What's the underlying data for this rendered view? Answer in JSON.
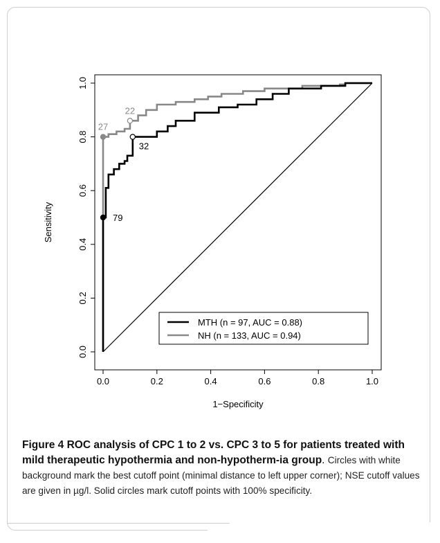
{
  "chart_data": {
    "type": "line",
    "xlabel": "1−Specificity",
    "ylabel": "Sensitivity",
    "xlim": [
      0,
      1
    ],
    "ylim": [
      0,
      1
    ],
    "xticks": [
      "0.0",
      "0.2",
      "0.4",
      "0.6",
      "0.8",
      "1.0"
    ],
    "yticks": [
      "0.0",
      "0.2",
      "0.4",
      "0.6",
      "0.8",
      "1.0"
    ],
    "legend_position": "bottom-right",
    "series": [
      {
        "name": "MTH (n = 97, AUC = 0.88)",
        "color": "#000000",
        "x": [
          0,
          0,
          0.01,
          0.01,
          0.02,
          0.02,
          0.04,
          0.04,
          0.06,
          0.06,
          0.08,
          0.08,
          0.09,
          0.09,
          0.11,
          0.11,
          0.2,
          0.2,
          0.24,
          0.24,
          0.27,
          0.27,
          0.34,
          0.34,
          0.43,
          0.43,
          0.5,
          0.5,
          0.57,
          0.57,
          0.63,
          0.63,
          0.69,
          0.69,
          0.81,
          0.81,
          0.9,
          0.9,
          1.0
        ],
        "y": [
          0,
          0.5,
          0.5,
          0.61,
          0.61,
          0.66,
          0.66,
          0.68,
          0.68,
          0.7,
          0.7,
          0.71,
          0.71,
          0.73,
          0.73,
          0.8,
          0.8,
          0.82,
          0.82,
          0.84,
          0.84,
          0.86,
          0.86,
          0.89,
          0.89,
          0.91,
          0.91,
          0.92,
          0.92,
          0.94,
          0.94,
          0.96,
          0.96,
          0.98,
          0.98,
          0.99,
          0.99,
          1.0,
          1.0
        ]
      },
      {
        "name": "NH (n = 133, AUC = 0.94)",
        "color": "#888888",
        "x": [
          0,
          0,
          0.02,
          0.02,
          0.05,
          0.05,
          0.08,
          0.08,
          0.1,
          0.1,
          0.13,
          0.13,
          0.16,
          0.16,
          0.2,
          0.2,
          0.27,
          0.27,
          0.34,
          0.34,
          0.39,
          0.39,
          0.44,
          0.44,
          0.52,
          0.52,
          0.6,
          0.6,
          0.74,
          0.74,
          0.88,
          0.88,
          0.9,
          0.9,
          1.0
        ],
        "y": [
          0,
          0.8,
          0.8,
          0.81,
          0.81,
          0.82,
          0.82,
          0.83,
          0.83,
          0.86,
          0.86,
          0.88,
          0.88,
          0.9,
          0.9,
          0.92,
          0.92,
          0.93,
          0.93,
          0.94,
          0.94,
          0.95,
          0.95,
          0.96,
          0.96,
          0.97,
          0.97,
          0.98,
          0.98,
          0.99,
          0.99,
          0.995,
          0.995,
          1.0,
          1.0
        ]
      }
    ],
    "points": [
      {
        "x": 0,
        "y": 0.5,
        "label": "79",
        "fill": "#000000",
        "stroke": "#000000",
        "label_color": "#000000",
        "label_side": "right"
      },
      {
        "x": 0.11,
        "y": 0.8,
        "label": "32",
        "fill": "#ffffff",
        "stroke": "#000000",
        "label_color": "#000000",
        "label_side": "below-right"
      },
      {
        "x": 0,
        "y": 0.8,
        "label": "27",
        "fill": "#888888",
        "stroke": "#888888",
        "label_color": "#888888",
        "label_side": "above"
      },
      {
        "x": 0.1,
        "y": 0.86,
        "label": "22",
        "fill": "#ffffff",
        "stroke": "#888888",
        "label_color": "#888888",
        "label_side": "above"
      }
    ],
    "diagonal": true
  },
  "caption": {
    "title_bold": "Figure 4 ROC analysis of CPC 1 to 2 vs. CPC 3 to 5 for patients treated with mild therapeutic hypothermia and non-hypotherm-ia group",
    "title_end": ".",
    "body": "Circles with white background mark the best cutoff point (minimal distance to left upper corner); NSE cutoff values are given in µg/l. Solid circles mark cutoff points with 100% specificity."
  }
}
